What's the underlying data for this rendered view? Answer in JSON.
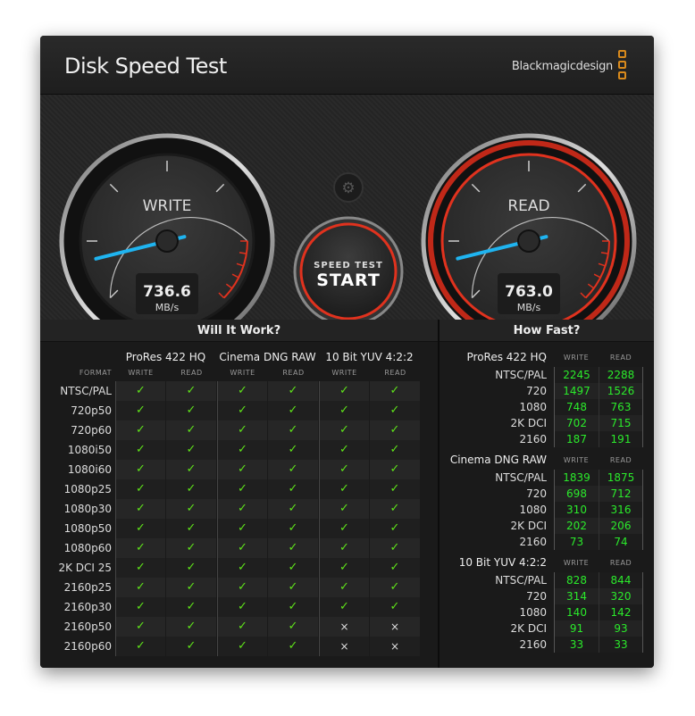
{
  "window": {
    "close_label": "×",
    "title": "Disk Speed Test",
    "brand": "Blackmagicdesign"
  },
  "gauges": {
    "write": {
      "label": "WRITE",
      "value": "736.6",
      "unit": "MB/s"
    },
    "read": {
      "label": "READ",
      "value": "763.0",
      "unit": "MB/s"
    },
    "start_button": {
      "top": "SPEED TEST",
      "main": "START"
    },
    "settings_icon": "gear-icon",
    "needle_color": "#1fb4f0",
    "accent_red": "#e0321e"
  },
  "will_it_work": {
    "heading": "Will It Work?",
    "format_label": "FORMAT",
    "groups": [
      "ProRes 422 HQ",
      "Cinema DNG RAW",
      "10 Bit YUV 4:2:2"
    ],
    "sub_headers": [
      "WRITE",
      "READ"
    ],
    "rows": [
      {
        "format": "NTSC/PAL",
        "cells": [
          "✓",
          "✓",
          "✓",
          "✓",
          "✓",
          "✓"
        ]
      },
      {
        "format": "720p50",
        "cells": [
          "✓",
          "✓",
          "✓",
          "✓",
          "✓",
          "✓"
        ]
      },
      {
        "format": "720p60",
        "cells": [
          "✓",
          "✓",
          "✓",
          "✓",
          "✓",
          "✓"
        ]
      },
      {
        "format": "1080i50",
        "cells": [
          "✓",
          "✓",
          "✓",
          "✓",
          "✓",
          "✓"
        ]
      },
      {
        "format": "1080i60",
        "cells": [
          "✓",
          "✓",
          "✓",
          "✓",
          "✓",
          "✓"
        ]
      },
      {
        "format": "1080p25",
        "cells": [
          "✓",
          "✓",
          "✓",
          "✓",
          "✓",
          "✓"
        ]
      },
      {
        "format": "1080p30",
        "cells": [
          "✓",
          "✓",
          "✓",
          "✓",
          "✓",
          "✓"
        ]
      },
      {
        "format": "1080p50",
        "cells": [
          "✓",
          "✓",
          "✓",
          "✓",
          "✓",
          "✓"
        ]
      },
      {
        "format": "1080p60",
        "cells": [
          "✓",
          "✓",
          "✓",
          "✓",
          "✓",
          "✓"
        ]
      },
      {
        "format": "2K DCI 25",
        "cells": [
          "✓",
          "✓",
          "✓",
          "✓",
          "✓",
          "✓"
        ]
      },
      {
        "format": "2160p25",
        "cells": [
          "✓",
          "✓",
          "✓",
          "✓",
          "✓",
          "✓"
        ]
      },
      {
        "format": "2160p30",
        "cells": [
          "✓",
          "✓",
          "✓",
          "✓",
          "✓",
          "✓"
        ]
      },
      {
        "format": "2160p50",
        "cells": [
          "✓",
          "✓",
          "✓",
          "✓",
          "×",
          "×"
        ]
      },
      {
        "format": "2160p60",
        "cells": [
          "✓",
          "✓",
          "✓",
          "✓",
          "×",
          "×"
        ]
      }
    ]
  },
  "how_fast": {
    "heading": "How Fast?",
    "sub_headers": [
      "WRITE",
      "READ"
    ],
    "groups": [
      {
        "name": "ProRes 422 HQ",
        "rows": [
          [
            "NTSC/PAL",
            "2245",
            "2288"
          ],
          [
            "720",
            "1497",
            "1526"
          ],
          [
            "1080",
            "748",
            "763"
          ],
          [
            "2K DCI",
            "702",
            "715"
          ],
          [
            "2160",
            "187",
            "191"
          ]
        ]
      },
      {
        "name": "Cinema DNG RAW",
        "rows": [
          [
            "NTSC/PAL",
            "1839",
            "1875"
          ],
          [
            "720",
            "698",
            "712"
          ],
          [
            "1080",
            "310",
            "316"
          ],
          [
            "2K DCI",
            "202",
            "206"
          ],
          [
            "2160",
            "73",
            "74"
          ]
        ]
      },
      {
        "name": "10 Bit YUV 4:2:2",
        "rows": [
          [
            "NTSC/PAL",
            "828",
            "844"
          ],
          [
            "720",
            "314",
            "320"
          ],
          [
            "1080",
            "140",
            "142"
          ],
          [
            "2K DCI",
            "91",
            "93"
          ],
          [
            "2160",
            "33",
            "33"
          ]
        ]
      }
    ]
  }
}
